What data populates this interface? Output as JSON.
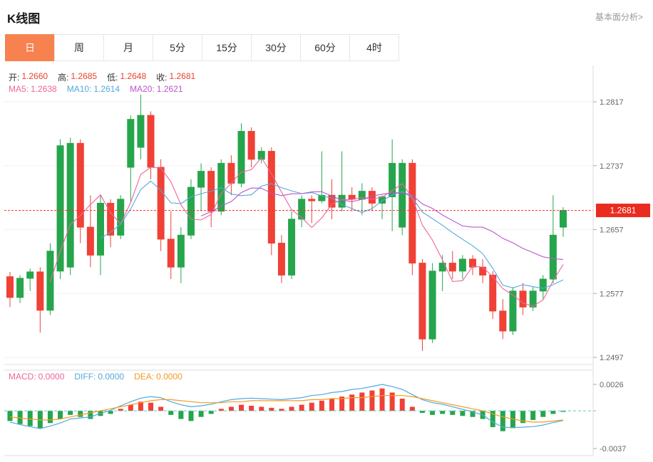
{
  "header": {
    "title": "K线图",
    "link_label": "基本面分析>"
  },
  "tabs": {
    "items": [
      "日",
      "周",
      "月",
      "5分",
      "15分",
      "30分",
      "60分",
      "4时"
    ],
    "selected_index": 0,
    "selected_color": "#f7824f"
  },
  "ohlc_items": [
    {
      "name": "open-value",
      "label": "开:",
      "value": "1.2660",
      "label_color": "#333333",
      "color": "#e8442c"
    },
    {
      "name": "high-value",
      "label": "高:",
      "value": "1.2685",
      "label_color": "#333333",
      "color": "#e8442c"
    },
    {
      "name": "low-value",
      "label": "低:",
      "value": "1.2648",
      "label_color": "#333333",
      "color": "#e8442c"
    },
    {
      "name": "close-value",
      "label": "收:",
      "value": "1.2681",
      "label_color": "#333333",
      "color": "#e8442c"
    }
  ],
  "ma_items": [
    {
      "name": "ma5-value",
      "label": "MA5:",
      "value": "1.2638",
      "label_color": "#f0649b",
      "color": "#f0649b"
    },
    {
      "name": "ma10-value",
      "label": "MA10:",
      "value": "1.2614",
      "label_color": "#52aadc",
      "color": "#52aadc"
    },
    {
      "name": "ma20-value",
      "label": "MA20:",
      "value": "1.2621",
      "label_color": "#bb55cc",
      "color": "#bb55cc"
    }
  ],
  "macd_items": [
    {
      "name": "macd-value",
      "label": "MACD:",
      "value": "0.0000",
      "label_color": "#f0649b",
      "color": "#f0649b"
    },
    {
      "name": "diff-value",
      "label": "DIFF:",
      "value": "0.0000",
      "label_color": "#52aadc",
      "color": "#52aadc"
    },
    {
      "name": "dea-value",
      "label": "DEA:",
      "value": "0.0000",
      "label_color": "#f59a23",
      "color": "#f59a23"
    }
  ],
  "chart_data": {
    "type": "candlestick",
    "title": "K线图 daily candlestick with MACD sub-chart",
    "current_price": 1.2681,
    "y_ticks": [
      1.2817,
      1.2737,
      1.2657,
      1.2577,
      1.2497
    ],
    "macd_y_ticks": [
      0.0026,
      -0.0037
    ],
    "colors": {
      "up": "#26a54c",
      "down": "#ef4136",
      "badge": "#ea2b1f",
      "price_line": "#ff2d2d",
      "ma5": "#f0649b",
      "ma10": "#52aadc",
      "ma20": "#bb55cc",
      "diff_line": "#52aadc",
      "dea_line": "#f59a23",
      "zero_line": "#5fc7c7",
      "axis_text": "#666666",
      "grid": "#f2f2f2",
      "border": "#dddddd"
    },
    "candles": [
      [
        1.2598,
        1.2604,
        1.256,
        1.2572
      ],
      [
        1.2572,
        1.26,
        1.2565,
        1.2596
      ],
      [
        1.2596,
        1.2608,
        1.258,
        1.2604
      ],
      [
        1.2604,
        1.261,
        1.2528,
        1.2556
      ],
      [
        1.2556,
        1.264,
        1.255,
        1.263
      ],
      [
        1.2605,
        1.277,
        1.2595,
        1.2762
      ],
      [
        1.261,
        1.2772,
        1.26,
        1.2765
      ],
      [
        1.2765,
        1.277,
        1.264,
        1.266
      ],
      [
        1.266,
        1.27,
        1.261,
        1.2625
      ],
      [
        1.2625,
        1.27,
        1.26,
        1.269
      ],
      [
        1.269,
        1.2695,
        1.2635,
        1.265
      ],
      [
        1.265,
        1.27,
        1.2645,
        1.2695
      ],
      [
        1.2735,
        1.28,
        1.269,
        1.2795
      ],
      [
        1.276,
        1.2826,
        1.2745,
        1.28
      ],
      [
        1.28,
        1.2805,
        1.272,
        1.2735
      ],
      [
        1.2735,
        1.2745,
        1.263,
        1.2645
      ],
      [
        1.2645,
        1.268,
        1.2595,
        1.261
      ],
      [
        1.261,
        1.266,
        1.259,
        1.265
      ],
      [
        1.265,
        1.272,
        1.2645,
        1.271
      ],
      [
        1.271,
        1.274,
        1.268,
        1.273
      ],
      [
        1.273,
        1.2735,
        1.266,
        1.268
      ],
      [
        1.268,
        1.2745,
        1.2675,
        1.274
      ],
      [
        1.274,
        1.275,
        1.27,
        1.2715
      ],
      [
        1.2715,
        1.279,
        1.271,
        1.278
      ],
      [
        1.278,
        1.2785,
        1.2735,
        1.2745
      ],
      [
        1.2745,
        1.276,
        1.274,
        1.2755
      ],
      [
        1.2755,
        1.276,
        1.2625,
        1.264
      ],
      [
        1.264,
        1.265,
        1.259,
        1.26
      ],
      [
        1.26,
        1.268,
        1.2595,
        1.267
      ],
      [
        1.267,
        1.27,
        1.266,
        1.2695
      ],
      [
        1.2695,
        1.27,
        1.2665,
        1.2693
      ],
      [
        1.2693,
        1.2755,
        1.269,
        1.27
      ],
      [
        1.27,
        1.272,
        1.267,
        1.2685
      ],
      [
        1.2685,
        1.2755,
        1.268,
        1.27
      ],
      [
        1.27,
        1.271,
        1.268,
        1.2695
      ],
      [
        1.2695,
        1.2715,
        1.2675,
        1.2705
      ],
      [
        1.2705,
        1.271,
        1.268,
        1.269
      ],
      [
        1.269,
        1.27,
        1.267,
        1.2698
      ],
      [
        1.2698,
        1.277,
        1.2655,
        1.274
      ],
      [
        1.266,
        1.2745,
        1.265,
        1.274
      ],
      [
        1.274,
        1.2745,
        1.26,
        1.2615
      ],
      [
        1.2615,
        1.262,
        1.2505,
        1.252
      ],
      [
        1.252,
        1.2615,
        1.2515,
        1.2605
      ],
      [
        1.2605,
        1.2625,
        1.258,
        1.2615
      ],
      [
        1.2615,
        1.263,
        1.2595,
        1.2605
      ],
      [
        1.2605,
        1.2625,
        1.2595,
        1.262
      ],
      [
        1.262,
        1.2625,
        1.26,
        1.261
      ],
      [
        1.261,
        1.262,
        1.259,
        1.26
      ],
      [
        1.26,
        1.2605,
        1.2545,
        1.2555
      ],
      [
        1.2555,
        1.257,
        1.252,
        1.253
      ],
      [
        1.253,
        1.2585,
        1.2525,
        1.258
      ],
      [
        1.258,
        1.259,
        1.255,
        1.256
      ],
      [
        1.256,
        1.2585,
        1.2555,
        1.258
      ],
      [
        1.258,
        1.26,
        1.257,
        1.2595
      ],
      [
        1.2595,
        1.27,
        1.259,
        1.265
      ],
      [
        1.266,
        1.2685,
        1.2648,
        1.2681
      ]
    ],
    "macd_hist": [
      -0.001,
      -0.0013,
      -0.0015,
      -0.0017,
      -0.0012,
      -0.0008,
      -0.0004,
      -0.0006,
      -0.0008,
      -0.0005,
      -0.0003,
      0.0002,
      0.0006,
      0.0009,
      0.0008,
      0.0004,
      -0.0004,
      -0.0008,
      -0.001,
      -0.0006,
      -0.0003,
      0.0002,
      0.0004,
      0.0006,
      0.0005,
      0.0004,
      0.0003,
      0.0002,
      0.0004,
      0.0006,
      0.0008,
      0.001,
      0.0012,
      0.0014,
      0.0016,
      0.0018,
      0.002,
      0.0022,
      0.0018,
      0.0012,
      0.0004,
      -0.0002,
      -0.0004,
      -0.0003,
      -0.0004,
      -0.0005,
      -0.0006,
      -0.0008,
      -0.0016,
      -0.002,
      -0.0017,
      -0.0012,
      -0.0009,
      -0.0006,
      -0.0003,
      -0.0001
    ],
    "macd_dea": [
      -0.0006,
      -0.0007,
      -0.0008,
      -0.0009,
      -0.0009,
      -0.0008,
      -0.0006,
      -0.0004,
      -0.0002,
      0.0,
      0.0002,
      0.0004,
      0.0006,
      0.0008,
      0.001,
      0.0011,
      0.0011,
      0.001,
      0.0009,
      0.0008,
      0.0008,
      0.0008,
      0.0009,
      0.0009,
      0.001,
      0.001,
      0.001,
      0.001,
      0.001,
      0.001,
      0.0011,
      0.0011,
      0.0012,
      0.0012,
      0.0013,
      0.0013,
      0.0014,
      0.0015,
      0.0015,
      0.0015,
      0.0014,
      0.0012,
      0.001,
      0.0008,
      0.0006,
      0.0004,
      0.0002,
      0.0,
      -0.0003,
      -0.0006,
      -0.0008,
      -0.001,
      -0.0011,
      -0.0011,
      -0.001,
      -0.0009
    ]
  }
}
